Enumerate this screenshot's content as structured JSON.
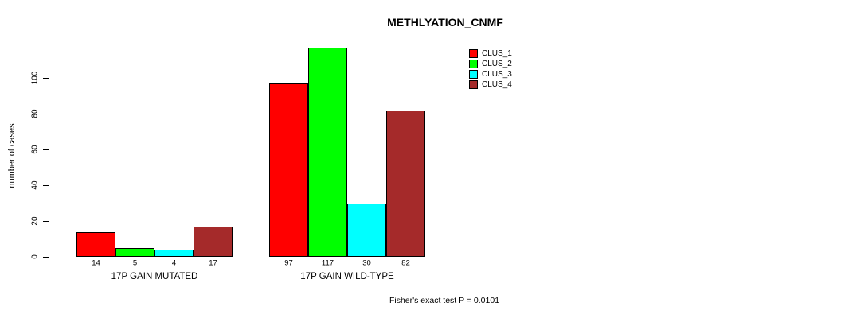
{
  "chart_data": {
    "type": "bar",
    "title": "METHLYATION_CNMF",
    "ylabel": "number of cases",
    "xlabel": "",
    "categories": [
      "17P GAIN MUTATED",
      "17P GAIN WILD-TYPE"
    ],
    "series": [
      {
        "name": "CLUS_1",
        "color": "#FF0000",
        "values": [
          14,
          97
        ]
      },
      {
        "name": "CLUS_2",
        "color": "#00FF00",
        "values": [
          5,
          117
        ]
      },
      {
        "name": "CLUS_3",
        "color": "#00FFFF",
        "values": [
          4,
          30
        ]
      },
      {
        "name": "CLUS_4",
        "color": "#A52A2A",
        "values": [
          17,
          82
        ]
      }
    ],
    "bar_value_labels": [
      [
        "14",
        "5",
        "4",
        "17"
      ],
      [
        "97",
        "117",
        "30",
        "82"
      ]
    ],
    "yticks": [
      0,
      20,
      40,
      60,
      80,
      100
    ],
    "ylim": [
      0,
      120
    ],
    "grid": false,
    "legend_position": "top-right",
    "annotation": "Fisher's exact test P = 0.0101"
  }
}
